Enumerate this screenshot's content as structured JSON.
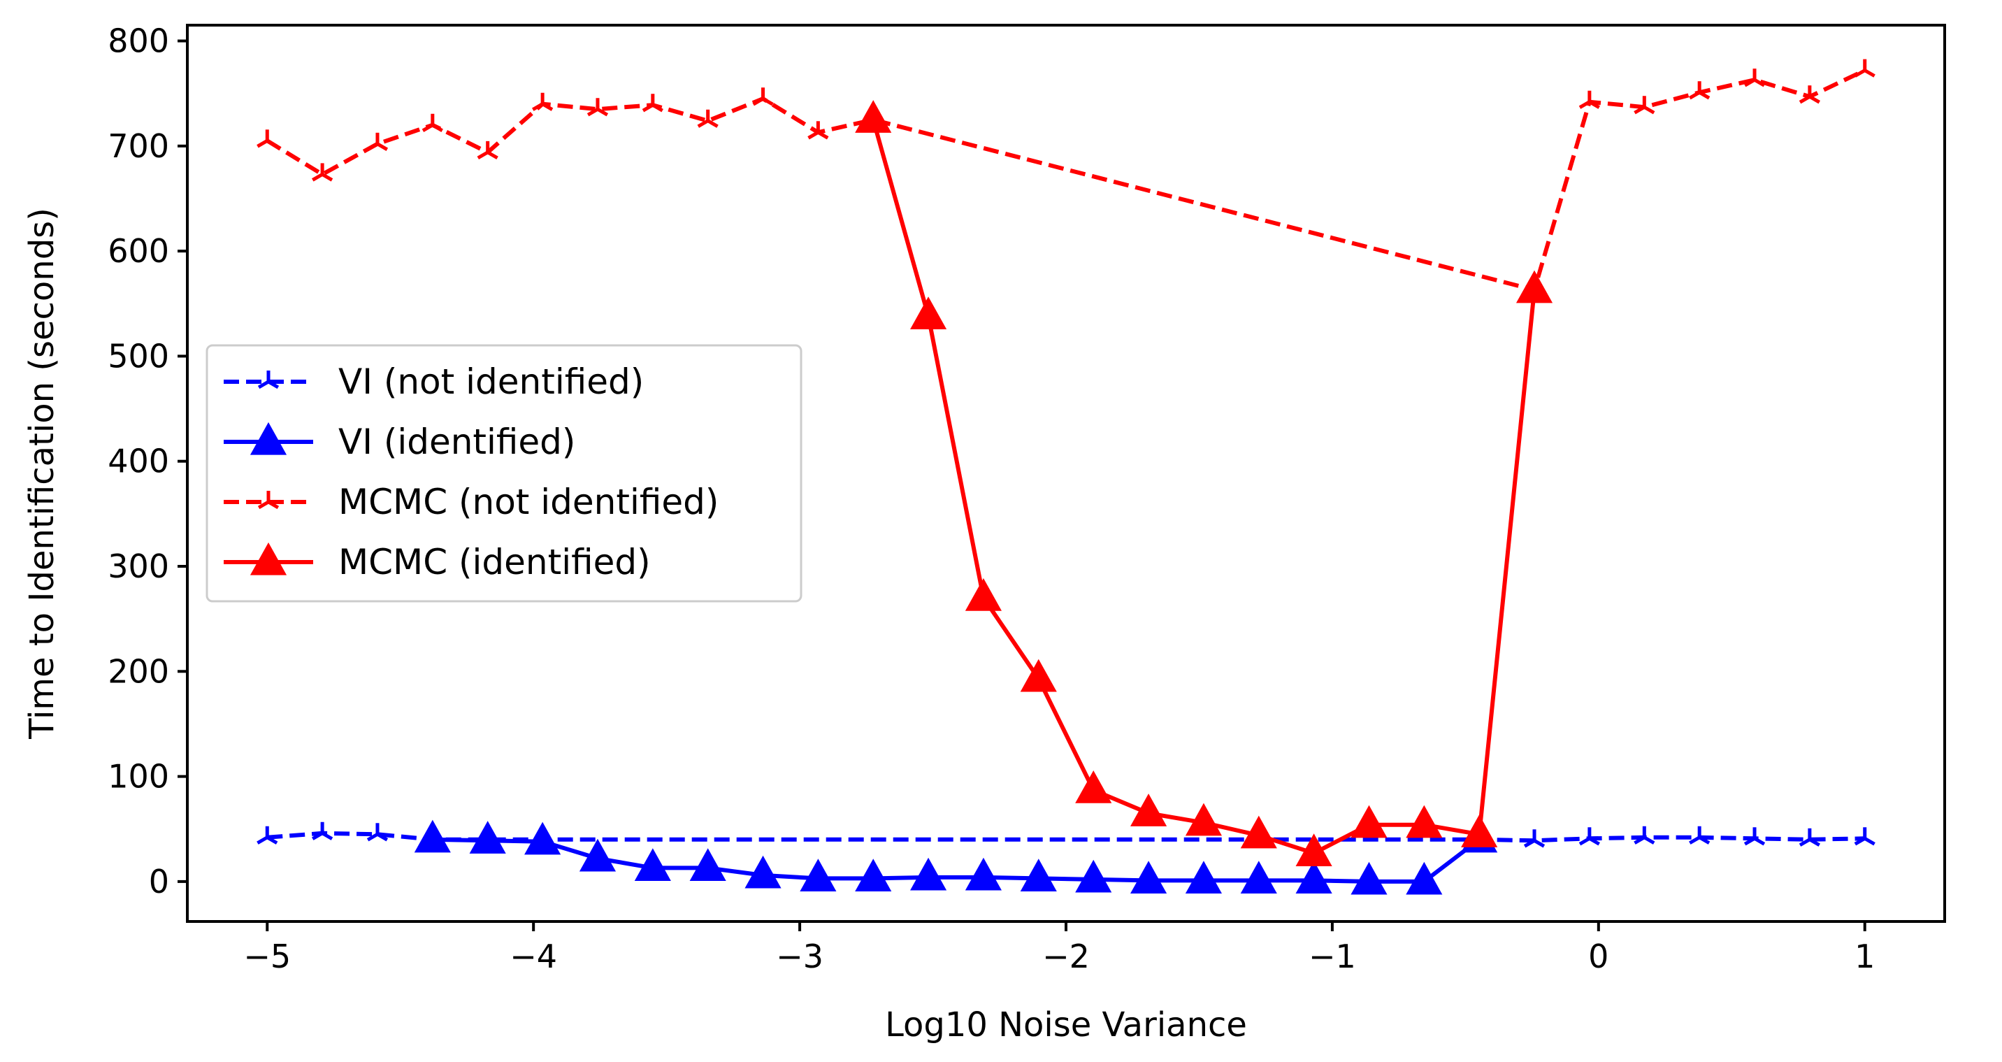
{
  "chart_data": {
    "type": "line",
    "title": "",
    "xlabel": "Log10 Noise Variance",
    "ylabel": "Time to Identification (seconds)",
    "xlim": [
      -5.3,
      1.3
    ],
    "ylim": [
      -38,
      815
    ],
    "xticks": [
      -5,
      -4,
      -3,
      -2,
      -1,
      0,
      1
    ],
    "xtick_labels": [
      "−5",
      "−4",
      "−3",
      "−2",
      "−1",
      "0",
      "1"
    ],
    "yticks": [
      0,
      100,
      200,
      300,
      400,
      500,
      600,
      700,
      800
    ],
    "ytick_labels": [
      "0",
      "100",
      "200",
      "300",
      "400",
      "500",
      "600",
      "700",
      "800"
    ],
    "grid": false,
    "legend_position": "center-left",
    "series": [
      {
        "name": "VI (not identified)",
        "color": "#0000ff",
        "line_style": "dashed",
        "marker": "tri-star",
        "x": [
          -5.0,
          -4.793,
          -4.586,
          -4.379,
          -0.448,
          -0.241,
          -0.034,
          0.172,
          0.379,
          0.586,
          0.793,
          1.0
        ],
        "y": [
          42,
          46,
          45,
          40,
          40,
          39,
          41,
          42,
          42,
          41,
          40,
          41
        ]
      },
      {
        "name": "VI (identified)",
        "color": "#0000ff",
        "line_style": "solid",
        "marker": "triangle",
        "x": [
          -4.379,
          -4.172,
          -3.966,
          -3.759,
          -3.552,
          -3.345,
          -3.138,
          -2.931,
          -2.724,
          -2.517,
          -2.31,
          -2.103,
          -1.897,
          -1.69,
          -1.483,
          -1.276,
          -1.069,
          -0.862,
          -0.655,
          -0.448
        ],
        "y": [
          40,
          39,
          38,
          22,
          13,
          13,
          6,
          3,
          3,
          4,
          4,
          3,
          2,
          1,
          1,
          1,
          1,
          0,
          0,
          40
        ]
      },
      {
        "name": "MCMC (not identified)",
        "color": "#ff0000",
        "line_style": "dashed",
        "marker": "tri-star",
        "x": [
          -5.0,
          -4.793,
          -4.586,
          -4.379,
          -4.172,
          -3.966,
          -3.759,
          -3.552,
          -3.345,
          -3.138,
          -2.931,
          -2.724,
          -0.241,
          -0.034,
          0.172,
          0.379,
          0.586,
          0.793,
          1.0
        ],
        "y": [
          705,
          673,
          702,
          720,
          694,
          740,
          735,
          739,
          724,
          745,
          713,
          725,
          563,
          742,
          737,
          751,
          763,
          747,
          772
        ]
      },
      {
        "name": "MCMC (identified)",
        "color": "#ff0000",
        "line_style": "solid",
        "marker": "triangle",
        "x": [
          -2.724,
          -2.517,
          -2.31,
          -2.103,
          -1.897,
          -1.69,
          -1.483,
          -1.276,
          -1.069,
          -0.862,
          -0.655,
          -0.448,
          -0.241
        ],
        "y": [
          725,
          538,
          270,
          193,
          87,
          65,
          56,
          44,
          27,
          54,
          54,
          45,
          563
        ]
      }
    ]
  }
}
